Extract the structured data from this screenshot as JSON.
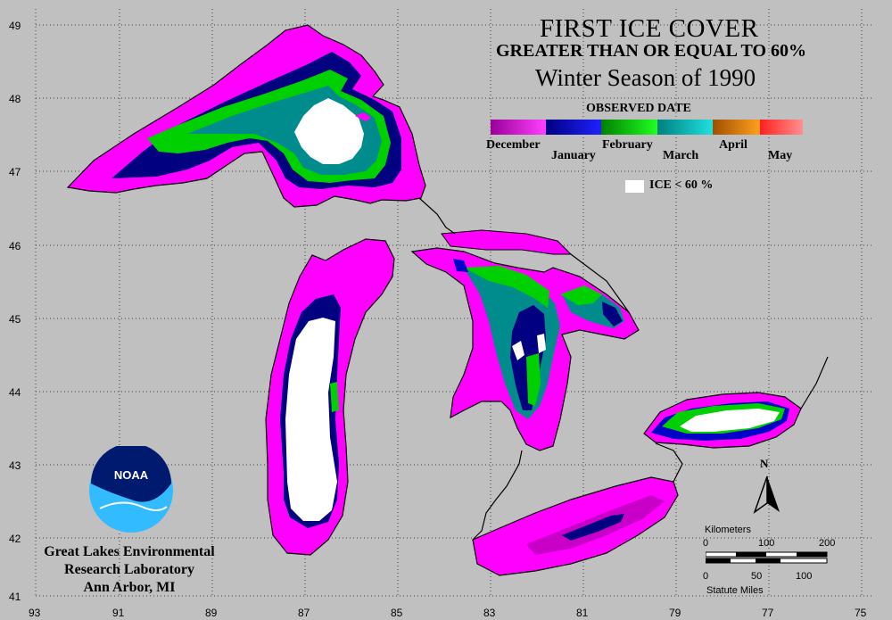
{
  "title": {
    "line1": "FIRST ICE COVER",
    "line2": "GREATER THAN OR EQUAL TO 60%",
    "line3": "Winter Season of 1990"
  },
  "legend": {
    "heading": "OBSERVED DATE",
    "months": [
      "December",
      "January",
      "February",
      "March",
      "April",
      "May"
    ],
    "month_colors": [
      [
        "#9a009a",
        "#ff40ff"
      ],
      [
        "#000080",
        "#2020ff"
      ],
      [
        "#008000",
        "#20ff20"
      ],
      [
        "#008080",
        "#20e0e0"
      ],
      [
        "#a05000",
        "#ffa020"
      ],
      [
        "#ff2020",
        "#ff9090"
      ]
    ],
    "ice_label": "ICE < 60 %"
  },
  "axes": {
    "lat_labels": [
      "49",
      "48",
      "47",
      "46",
      "45",
      "44",
      "43",
      "42",
      "41"
    ],
    "lon_labels": [
      "93",
      "91",
      "89",
      "87",
      "85",
      "83",
      "81",
      "79",
      "77",
      "75"
    ]
  },
  "organization": {
    "logo_text": "NOAA",
    "line1": "Great Lakes Environmental",
    "line2": "Research Laboratory",
    "line3": "Ann Arbor, MI"
  },
  "scale": {
    "km_title": "Kilometers",
    "km_ticks": [
      "0",
      "100",
      "200"
    ],
    "mile_ticks": [
      "0",
      "50",
      "100"
    ],
    "mile_title": "Statute Miles"
  },
  "north_label": "N",
  "colors": {
    "background": "#c0c0c0",
    "december": "#ff00ff",
    "january": "#0000c8",
    "february": "#00e000",
    "march": "#009090",
    "ice_lt_60": "#ffffff"
  }
}
